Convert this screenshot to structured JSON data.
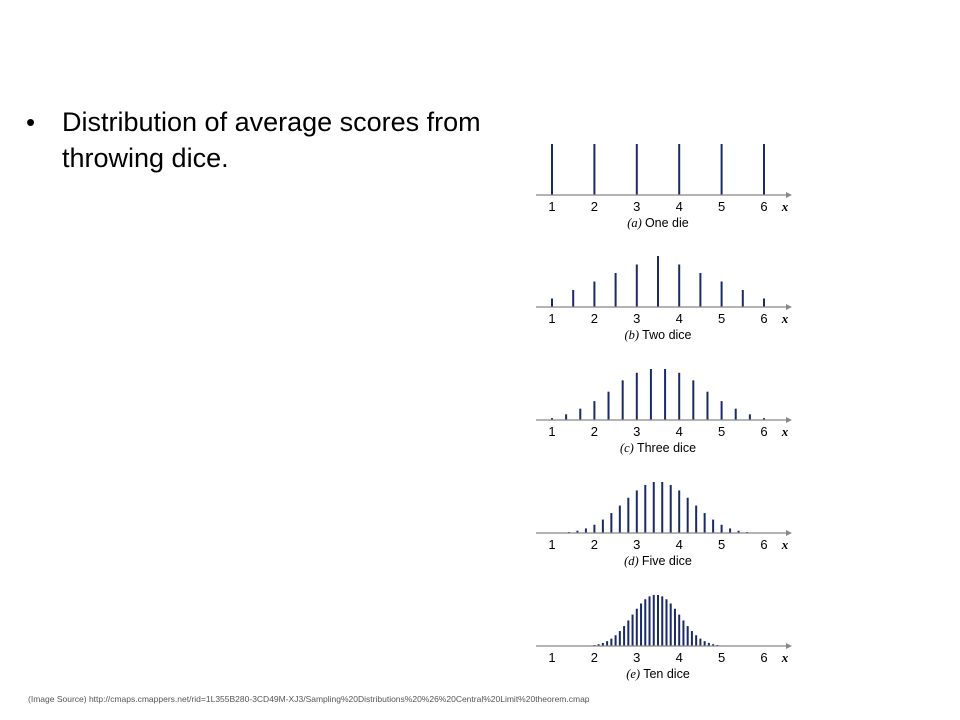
{
  "slide": {
    "bullet_symbol": "•",
    "bullet_text": "Distribution of average scores from throwing dice.",
    "source": "(Image Source) http://cmaps.cmappers.net/rid=1L355B280-3CD49M-XJ3/Sampling%20Distributions%20%26%20Central%20Limit%20theorem.cmap"
  },
  "colors": {
    "bar": "#1a2a66",
    "axis": "#888888",
    "text": "#000000"
  },
  "chart_data": [
    {
      "type": "bar",
      "caption_letter": "(a)",
      "caption": "One die",
      "xlabel": "x",
      "xticks": [
        "1",
        "2",
        "3",
        "4",
        "5",
        "6"
      ],
      "xlim": [
        1,
        6
      ],
      "x": [
        1,
        2,
        3,
        4,
        5,
        6
      ],
      "values": [
        0.1667,
        0.1667,
        0.1667,
        0.1667,
        0.1667,
        0.1667
      ]
    },
    {
      "type": "bar",
      "caption_letter": "(b)",
      "caption": "Two dice",
      "xlabel": "x",
      "xticks": [
        "1",
        "2",
        "3",
        "4",
        "5",
        "6"
      ],
      "xlim": [
        1,
        6
      ],
      "x": [
        1,
        1.5,
        2,
        2.5,
        3,
        3.5,
        4,
        4.5,
        5,
        5.5,
        6
      ],
      "values": [
        0.0278,
        0.0556,
        0.0833,
        0.1111,
        0.1389,
        0.1667,
        0.1389,
        0.1111,
        0.0833,
        0.0556,
        0.0278
      ]
    },
    {
      "type": "bar",
      "caption_letter": "(c)",
      "caption": "Three dice",
      "xlabel": "x",
      "xticks": [
        "1",
        "2",
        "3",
        "4",
        "5",
        "6"
      ],
      "xlim": [
        1,
        6
      ],
      "x": [
        1,
        1.333,
        1.667,
        2,
        2.333,
        2.667,
        3,
        3.333,
        3.667,
        4,
        4.333,
        4.667,
        5,
        5.333,
        5.667,
        6
      ],
      "values": [
        0.0046,
        0.0139,
        0.0278,
        0.0463,
        0.0694,
        0.0972,
        0.1157,
        0.125,
        0.125,
        0.1157,
        0.0972,
        0.0694,
        0.0463,
        0.0278,
        0.0139,
        0.0046
      ]
    },
    {
      "type": "bar",
      "caption_letter": "(d)",
      "caption": "Five dice",
      "xlabel": "x",
      "xticks": [
        "1",
        "2",
        "3",
        "4",
        "5",
        "6"
      ],
      "xlim": [
        1,
        6
      ],
      "x": [
        1,
        1.2,
        1.4,
        1.6,
        1.8,
        2,
        2.2,
        2.4,
        2.6,
        2.8,
        3,
        3.2,
        3.4,
        3.6,
        3.8,
        4,
        4.2,
        4.4,
        4.6,
        4.8,
        5,
        5.2,
        5.4,
        5.6,
        5.8,
        6
      ],
      "values": [
        0.0001,
        0.0006,
        0.0019,
        0.0045,
        0.009,
        0.0162,
        0.0264,
        0.0392,
        0.054,
        0.0694,
        0.0837,
        0.0945,
        0.1003,
        0.1003,
        0.0945,
        0.0837,
        0.0694,
        0.054,
        0.0392,
        0.0264,
        0.0162,
        0.009,
        0.0045,
        0.0019,
        0.0006,
        0.0001
      ]
    },
    {
      "type": "bar",
      "caption_letter": "(e)",
      "caption": "Ten dice",
      "xlabel": "x",
      "xticks": [
        "1",
        "2",
        "3",
        "4",
        "5",
        "6"
      ],
      "xlim": [
        1,
        6
      ],
      "x": [
        1.0,
        1.1,
        1.2,
        1.3,
        1.4,
        1.5,
        1.6,
        1.7,
        1.8,
        1.9,
        2.0,
        2.1,
        2.2,
        2.3,
        2.4,
        2.5,
        2.6,
        2.7,
        2.8,
        2.9,
        3.0,
        3.1,
        3.2,
        3.3,
        3.4,
        3.5,
        3.6,
        3.7,
        3.8,
        3.9,
        4.0,
        4.1,
        4.2,
        4.3,
        4.4,
        4.5,
        4.6,
        4.7,
        4.8,
        4.9,
        5.0,
        5.1,
        5.2,
        5.3,
        5.4,
        5.5,
        5.6,
        5.7,
        5.8,
        5.9,
        6.0
      ],
      "values": [
        0.0,
        0.0,
        0.0,
        0.0,
        0.0,
        0.0,
        0.0001,
        0.0002,
        0.0004,
        0.0008,
        0.0015,
        0.0027,
        0.0046,
        0.0073,
        0.0111,
        0.0162,
        0.0225,
        0.03,
        0.0385,
        0.0473,
        0.0561,
        0.064,
        0.0704,
        0.0748,
        0.0768,
        0.0768,
        0.0748,
        0.0704,
        0.064,
        0.0561,
        0.0473,
        0.0385,
        0.03,
        0.0225,
        0.0162,
        0.0111,
        0.0073,
        0.0046,
        0.0027,
        0.0015,
        0.0008,
        0.0004,
        0.0002,
        0.0001,
        0.0,
        0.0,
        0.0,
        0.0,
        0.0,
        0.0,
        0.0
      ]
    }
  ]
}
